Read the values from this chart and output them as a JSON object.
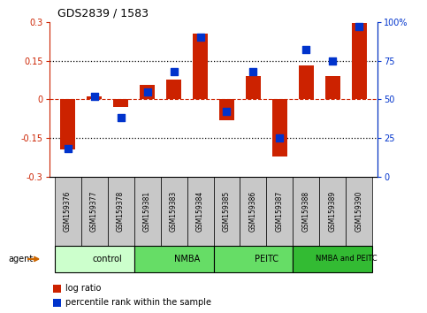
{
  "title": "GDS2839 / 1583",
  "samples": [
    "GSM159376",
    "GSM159377",
    "GSM159378",
    "GSM159381",
    "GSM159383",
    "GSM159384",
    "GSM159385",
    "GSM159386",
    "GSM159387",
    "GSM159388",
    "GSM159389",
    "GSM159390"
  ],
  "log_ratio": [
    -0.195,
    0.01,
    -0.03,
    0.055,
    0.075,
    0.255,
    -0.08,
    0.09,
    -0.22,
    0.13,
    0.09,
    0.295
  ],
  "percentile_rank": [
    18,
    52,
    38,
    55,
    68,
    90,
    42,
    68,
    25,
    82,
    75,
    97
  ],
  "groups": [
    {
      "label": "control",
      "start": 0,
      "end": 3,
      "color": "#ccffcc"
    },
    {
      "label": "NMBA",
      "start": 3,
      "end": 6,
      "color": "#66dd66"
    },
    {
      "label": "PEITC",
      "start": 6,
      "end": 9,
      "color": "#66dd66"
    },
    {
      "label": "NMBA and PEITC",
      "start": 9,
      "end": 12,
      "color": "#33bb33"
    }
  ],
  "ylim_left": [
    -0.3,
    0.3
  ],
  "ylim_right": [
    0,
    100
  ],
  "yticks_left": [
    -0.3,
    -0.15,
    0.0,
    0.15,
    0.3
  ],
  "yticks_right": [
    0,
    25,
    50,
    75,
    100
  ],
  "hlines_dotted": [
    -0.15,
    0.15
  ],
  "hline_dashed": 0.0,
  "bar_color": "#cc2200",
  "dot_color": "#0033cc",
  "bar_width": 0.55,
  "dot_size": 40,
  "agent_label": "agent",
  "legend_items": [
    "log ratio",
    "percentile rank within the sample"
  ],
  "sample_box_color": "#c8c8c8",
  "title_fontsize": 9,
  "tick_fontsize": 7,
  "label_fontsize": 5.5,
  "group_fontsize": 7,
  "legend_fontsize": 7
}
